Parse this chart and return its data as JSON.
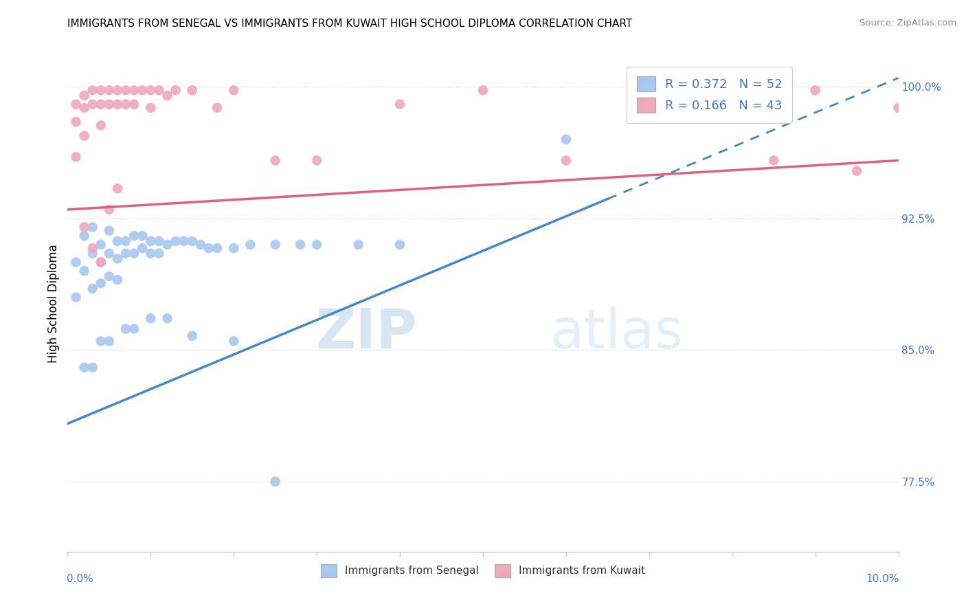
{
  "title": "IMMIGRANTS FROM SENEGAL VS IMMIGRANTS FROM KUWAIT HIGH SCHOOL DIPLOMA CORRELATION CHART",
  "source": "Source: ZipAtlas.com",
  "ylabel": "High School Diploma",
  "right_yticks": [
    1.0,
    0.925,
    0.85,
    0.775
  ],
  "right_ytick_labels": [
    "100.0%",
    "92.5%",
    "85.0%",
    "77.5%"
  ],
  "legend_label1": "R = 0.372   N = 52",
  "legend_label2": "R = 0.166   N = 43",
  "legend_label_bottom1": "Immigrants from Senegal",
  "legend_label_bottom2": "Immigrants from Kuwait",
  "color_blue": "#A8C8F0",
  "color_pink": "#F0A8BC",
  "color_blue_line": "#4488CC",
  "color_pink_line": "#E06080",
  "color_r_value": "#4477CC",
  "watermark_zip": "ZIP",
  "watermark_atlas": "atlas",
  "blue_scatter_x": [
    0.001,
    0.001,
    0.002,
    0.002,
    0.003,
    0.003,
    0.003,
    0.004,
    0.004,
    0.004,
    0.005,
    0.005,
    0.005,
    0.006,
    0.006,
    0.006,
    0.007,
    0.007,
    0.008,
    0.008,
    0.009,
    0.009,
    0.01,
    0.01,
    0.011,
    0.011,
    0.012,
    0.013,
    0.014,
    0.015,
    0.016,
    0.017,
    0.018,
    0.02,
    0.022,
    0.025,
    0.028,
    0.03,
    0.035,
    0.04,
    0.002,
    0.003,
    0.004,
    0.005,
    0.007,
    0.008,
    0.01,
    0.012,
    0.015,
    0.02,
    0.06,
    0.025
  ],
  "blue_scatter_y": [
    0.9,
    0.88,
    0.915,
    0.895,
    0.92,
    0.905,
    0.885,
    0.91,
    0.9,
    0.888,
    0.918,
    0.905,
    0.892,
    0.912,
    0.902,
    0.89,
    0.912,
    0.905,
    0.915,
    0.905,
    0.915,
    0.908,
    0.912,
    0.905,
    0.912,
    0.905,
    0.91,
    0.912,
    0.912,
    0.912,
    0.91,
    0.908,
    0.908,
    0.908,
    0.91,
    0.91,
    0.91,
    0.91,
    0.91,
    0.91,
    0.84,
    0.84,
    0.855,
    0.855,
    0.862,
    0.862,
    0.868,
    0.868,
    0.858,
    0.855,
    0.97,
    0.775
  ],
  "pink_scatter_x": [
    0.001,
    0.001,
    0.001,
    0.002,
    0.002,
    0.002,
    0.003,
    0.003,
    0.004,
    0.004,
    0.004,
    0.005,
    0.005,
    0.006,
    0.006,
    0.007,
    0.007,
    0.008,
    0.008,
    0.009,
    0.01,
    0.01,
    0.011,
    0.012,
    0.013,
    0.015,
    0.018,
    0.02,
    0.025,
    0.03,
    0.04,
    0.05,
    0.06,
    0.075,
    0.085,
    0.09,
    0.095,
    0.1,
    0.002,
    0.003,
    0.004,
    0.005,
    0.006
  ],
  "pink_scatter_y": [
    0.99,
    0.98,
    0.96,
    0.995,
    0.988,
    0.972,
    0.998,
    0.99,
    0.998,
    0.99,
    0.978,
    0.998,
    0.99,
    0.998,
    0.99,
    0.998,
    0.99,
    0.998,
    0.99,
    0.998,
    0.998,
    0.988,
    0.998,
    0.995,
    0.998,
    0.998,
    0.988,
    0.998,
    0.958,
    0.958,
    0.99,
    0.998,
    0.958,
    0.998,
    0.958,
    0.998,
    0.952,
    0.988,
    0.92,
    0.908,
    0.9,
    0.93,
    0.942
  ],
  "xmin": 0.0,
  "xmax": 0.1,
  "ymin": 0.735,
  "ymax": 1.018,
  "blue_line_x0": 0.0,
  "blue_line_y0": 0.808,
  "blue_line_x1": 0.1,
  "blue_line_y1": 1.005,
  "pink_line_x0": 0.0,
  "pink_line_y0": 0.93,
  "pink_line_x1": 0.1,
  "pink_line_y1": 0.958,
  "blue_dash_cutoff": 0.065
}
